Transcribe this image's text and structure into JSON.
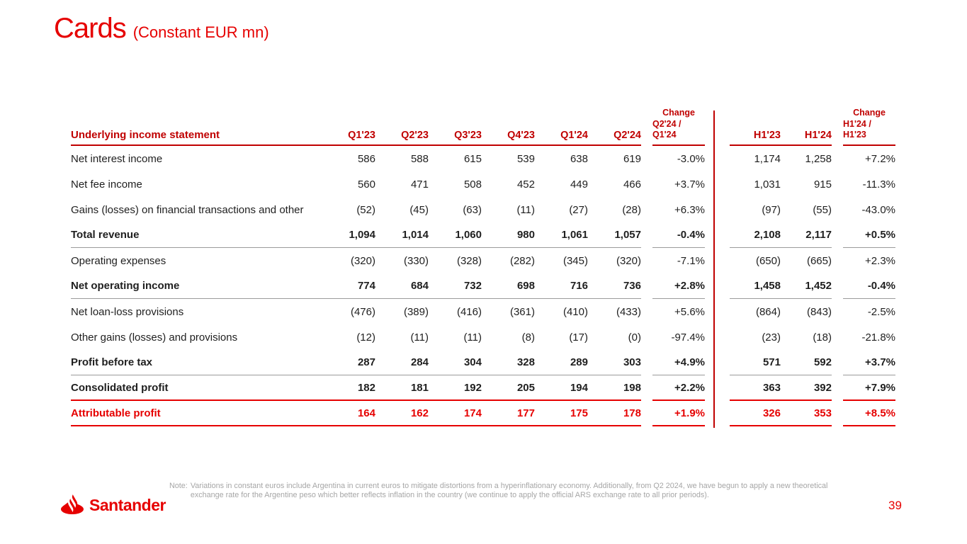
{
  "slide": {
    "title": "Cards",
    "subtitle": "(Constant EUR mn)",
    "page_number": "39"
  },
  "colors": {
    "brand_red": "#E60000",
    "header_red": "#C00000",
    "rule_gray": "#9B9B9B",
    "note_gray": "#A6A6A6",
    "text_dark": "#1F1F1F"
  },
  "table": {
    "header": {
      "label": "Underlying income statement",
      "quarter_cols": [
        "Q1'23",
        "Q2'23",
        "Q3'23",
        "Q4'23",
        "Q1'24",
        "Q2'24"
      ],
      "change_q_title": "Change",
      "change_q_sub": "Q2'24 / Q1'24",
      "half_cols": [
        "H1'23",
        "H1'24"
      ],
      "change_h_title": "Change",
      "change_h_sub": "H1'24 / H1'23"
    },
    "rows": [
      {
        "label": "Net interest income",
        "bold": false,
        "red": false,
        "rule_below": "",
        "quarters": [
          "586",
          "588",
          "615",
          "539",
          "638",
          "619"
        ],
        "change_q": "-3.0%",
        "halves": [
          "1,174",
          "1,258"
        ],
        "change_h": "+7.2%"
      },
      {
        "label": "Net fee income",
        "bold": false,
        "red": false,
        "rule_below": "",
        "quarters": [
          "560",
          "471",
          "508",
          "452",
          "449",
          "466"
        ],
        "change_q": "+3.7%",
        "halves": [
          "1,031",
          "915"
        ],
        "change_h": "-11.3%"
      },
      {
        "label": "Gains (losses) on financial transactions and other",
        "bold": false,
        "red": false,
        "rule_below": "",
        "quarters": [
          "(52)",
          "(45)",
          "(63)",
          "(11)",
          "(27)",
          "(28)"
        ],
        "change_q": "+6.3%",
        "halves": [
          "(97)",
          "(55)"
        ],
        "change_h": "-43.0%"
      },
      {
        "label": "Total revenue",
        "bold": true,
        "red": false,
        "rule_below": "gray",
        "quarters": [
          "1,094",
          "1,014",
          "1,060",
          "980",
          "1,061",
          "1,057"
        ],
        "change_q": "-0.4%",
        "halves": [
          "2,108",
          "2,117"
        ],
        "change_h": "+0.5%"
      },
      {
        "label": "Operating expenses",
        "bold": false,
        "red": false,
        "rule_below": "",
        "quarters": [
          "(320)",
          "(330)",
          "(328)",
          "(282)",
          "(345)",
          "(320)"
        ],
        "change_q": "-7.1%",
        "halves": [
          "(650)",
          "(665)"
        ],
        "change_h": "+2.3%"
      },
      {
        "label": "Net operating income",
        "bold": true,
        "red": false,
        "rule_below": "gray",
        "quarters": [
          "774",
          "684",
          "732",
          "698",
          "716",
          "736"
        ],
        "change_q": "+2.8%",
        "halves": [
          "1,458",
          "1,452"
        ],
        "change_h": "-0.4%"
      },
      {
        "label": "Net loan-loss provisions",
        "bold": false,
        "red": false,
        "rule_below": "",
        "quarters": [
          "(476)",
          "(389)",
          "(416)",
          "(361)",
          "(410)",
          "(433)"
        ],
        "change_q": "+5.6%",
        "halves": [
          "(864)",
          "(843)"
        ],
        "change_h": "-2.5%"
      },
      {
        "label": "Other gains (losses) and provisions",
        "bold": false,
        "red": false,
        "rule_below": "",
        "quarters": [
          "(12)",
          "(11)",
          "(11)",
          "(8)",
          "(17)",
          "(0)"
        ],
        "change_q": "-97.4%",
        "halves": [
          "(23)",
          "(18)"
        ],
        "change_h": "-21.8%"
      },
      {
        "label": "Profit before tax",
        "bold": true,
        "red": false,
        "rule_below": "gray",
        "quarters": [
          "287",
          "284",
          "304",
          "328",
          "289",
          "303"
        ],
        "change_q": "+4.9%",
        "halves": [
          "571",
          "592"
        ],
        "change_h": "+3.7%"
      },
      {
        "label": "Consolidated profit",
        "bold": true,
        "red": false,
        "rule_below": "red",
        "quarters": [
          "182",
          "181",
          "192",
          "205",
          "194",
          "198"
        ],
        "change_q": "+2.2%",
        "halves": [
          "363",
          "392"
        ],
        "change_h": "+7.9%"
      },
      {
        "label": "Attributable profit",
        "bold": true,
        "red": true,
        "rule_below": "red",
        "quarters": [
          "164",
          "162",
          "174",
          "177",
          "175",
          "178"
        ],
        "change_q": "+1.9%",
        "halves": [
          "326",
          "353"
        ],
        "change_h": "+8.5%"
      }
    ]
  },
  "footer": {
    "logo_text": "Santander",
    "note_prefix": "Note:",
    "note_text": "Variations in constant euros include Argentina in current euros to mitigate distortions from a hyperinflationary economy. Additionally, from Q2 2024, we have begun to apply a new theoretical exchange rate for the Argentine peso which better reflects inflation in the country (we continue to apply the official ARS exchange rate to all prior periods)."
  }
}
